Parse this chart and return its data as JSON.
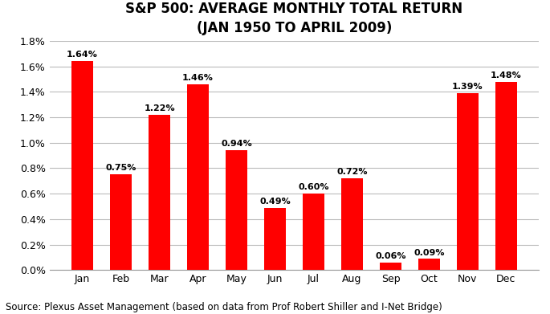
{
  "title": "S&P 500: AVERAGE MONTHLY TOTAL RETURN\n(JAN 1950 TO APRIL 2009)",
  "categories": [
    "Jan",
    "Feb",
    "Mar",
    "Apr",
    "May",
    "Jun",
    "Jul",
    "Aug",
    "Sep",
    "Oct",
    "Nov",
    "Dec"
  ],
  "values": [
    1.64,
    0.75,
    1.22,
    1.46,
    0.94,
    0.49,
    0.6,
    0.72,
    0.06,
    0.09,
    1.39,
    1.48
  ],
  "labels": [
    "1.64%",
    "0.75%",
    "1.22%",
    "1.46%",
    "0.94%",
    "0.49%",
    "0.60%",
    "0.72%",
    "0.06%",
    "0.09%",
    "1.39%",
    "1.48%"
  ],
  "bar_color": "#FF0000",
  "ylim": [
    0.0,
    1.8
  ],
  "yticks": [
    0.0,
    0.2,
    0.4,
    0.6,
    0.8,
    1.0,
    1.2,
    1.4,
    1.6,
    1.8
  ],
  "ytick_labels": [
    "0.0%",
    "0.2%",
    "0.4%",
    "0.6%",
    "0.8%",
    "1.0%",
    "1.2%",
    "1.4%",
    "1.6%",
    "1.8%"
  ],
  "source_text": "Source: Plexus Asset Management (based on data from Prof Robert Shiller and I-Net Bridge)",
  "title_fontsize": 12,
  "source_fontsize": 8.5,
  "label_fontsize": 8,
  "tick_fontsize": 9,
  "background_color": "#FFFFFF",
  "grid_color": "#BBBBBB",
  "bar_width": 0.55
}
